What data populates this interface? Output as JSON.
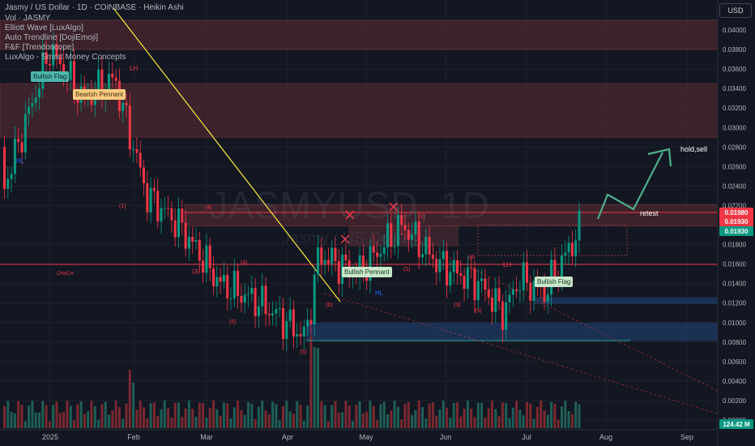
{
  "header": {
    "title": "Jasmy / US Dollar · 1D · COINBASE · Heikin Ashi",
    "indicators": [
      "Vol · JASMY",
      "Elliott Wave [LuxAlgo]",
      "Auto Trendline [DojiEmoji]",
      "F&F [Trendoscope]",
      "LuxAlgo - Smart Money Concepts"
    ]
  },
  "watermark": {
    "symbol": "JASMYUSD, 1D",
    "name": "Jasmy / US Dollar"
  },
  "currency_button": "USD",
  "price_axis": {
    "ticks": [
      "0.04000",
      "0.03800",
      "0.03600",
      "0.03400",
      "0.03200",
      "0.03000",
      "0.02800",
      "0.02600",
      "0.02400",
      "0.02200",
      "0.01800",
      "0.01600",
      "0.01400",
      "0.01200",
      "0.01000",
      "0.00800",
      "0.00600",
      "0.00400",
      "0.00200",
      "0.00000"
    ],
    "badges": [
      {
        "label": "0.01980",
        "color": "#f23645"
      },
      {
        "label": "0.01930",
        "color": "#f23645"
      },
      {
        "label": "0.01930",
        "color": "#089981"
      },
      {
        "label": "124.42 M",
        "color": "#089981"
      }
    ]
  },
  "time_axis": {
    "ticks": [
      "2025",
      "Feb",
      "Mar",
      "Apr",
      "May",
      "Jun",
      "Jul",
      "Aug",
      "Sep"
    ]
  },
  "annotations": {
    "bullish_flag": "Bullish Flag",
    "bearish_pennant": "Bearish Pennant",
    "bullish_pennant": "Bullish Pennant",
    "retest": "retest",
    "hold_sell": "hold,sell",
    "choch": "CHoCH",
    "hl": "HL",
    "lh": "LH",
    "waves": [
      "(1)",
      "(2)",
      "(3)",
      "(4)",
      "(5)",
      "(a)",
      "(b)"
    ]
  },
  "colors": {
    "background": "#131722",
    "up": "#089981",
    "down": "#f23645",
    "resistance_zone": "#5d2b33",
    "support_zone": "#1f3b66",
    "trendline": "#ffeb3b",
    "projection": "#4caf8a",
    "volume_up": "#1e5f55",
    "volume_down": "#7a2830"
  },
  "chart_data": {
    "type": "candlestick",
    "title": "Jasmy / US Dollar · 1D · COINBASE · Heikin Ashi",
    "ylim": [
      0.0,
      0.042
    ],
    "ylabel": "USD",
    "x": [
      "2024-12-20",
      "2025-01-05",
      "2025-01-20",
      "2025-02-03",
      "2025-02-17",
      "2025-03-03",
      "2025-03-17",
      "2025-04-01",
      "2025-04-07",
      "2025-04-15",
      "2025-04-28",
      "2025-05-10",
      "2025-05-25",
      "2025-06-10",
      "2025-06-22",
      "2025-07-01",
      "2025-07-10",
      "2025-07-18"
    ],
    "series": [
      {
        "name": "close",
        "values": [
          0.028,
          0.038,
          0.033,
          0.035,
          0.023,
          0.02,
          0.014,
          0.012,
          0.0085,
          0.017,
          0.015,
          0.02,
          0.016,
          0.014,
          0.011,
          0.0145,
          0.013,
          0.0195
        ]
      }
    ],
    "volume_last": "124.42 M",
    "zones": {
      "resistance": [
        [
          0.038,
          0.041
        ],
        [
          0.029,
          0.0345
        ],
        [
          0.0199,
          0.0221
        ]
      ],
      "support": [
        [
          0.0081,
          0.01
        ],
        [
          0.0119,
          0.0126
        ]
      ]
    },
    "projection": [
      "retest",
      "hold,sell"
    ]
  }
}
